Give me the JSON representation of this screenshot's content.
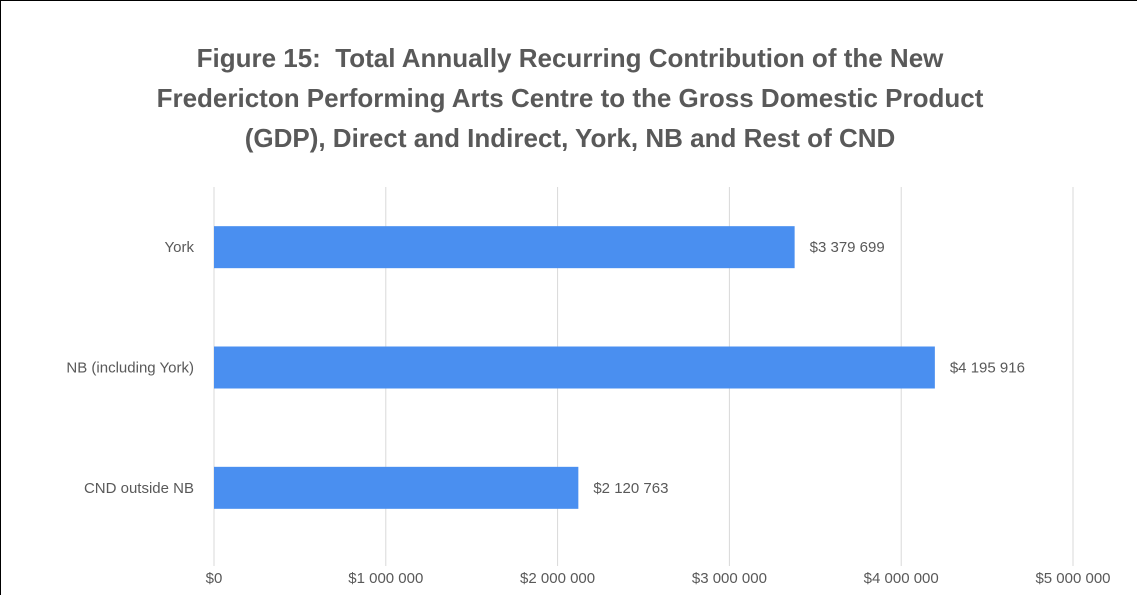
{
  "chart_data": {
    "type": "bar",
    "orientation": "horizontal",
    "title": "Figure 15:  Total Annually Recurring Contribution of the New Fredericton Performing Arts Centre to the Gross Domestic Product (GDP), Direct and Indirect, York, NB and Rest of CND",
    "categories": [
      "York",
      "NB (including York)",
      "CND outside NB"
    ],
    "values": [
      3379699,
      4195916,
      2120763
    ],
    "value_labels": [
      "$3 379 699",
      "$4 195 916",
      "$2 120 763"
    ],
    "color": "#4a8ff0",
    "xlim": [
      0,
      5000000
    ],
    "xticks": [
      {
        "value": 0,
        "label": "$0"
      },
      {
        "value": 1000000,
        "label": "$1 000 000"
      },
      {
        "value": 2000000,
        "label": "$2 000 000"
      },
      {
        "value": 3000000,
        "label": "$3 000 000"
      },
      {
        "value": 4000000,
        "label": "$4 000 000"
      },
      {
        "value": 5000000,
        "label": "$5 000 000"
      }
    ],
    "grid": true
  }
}
